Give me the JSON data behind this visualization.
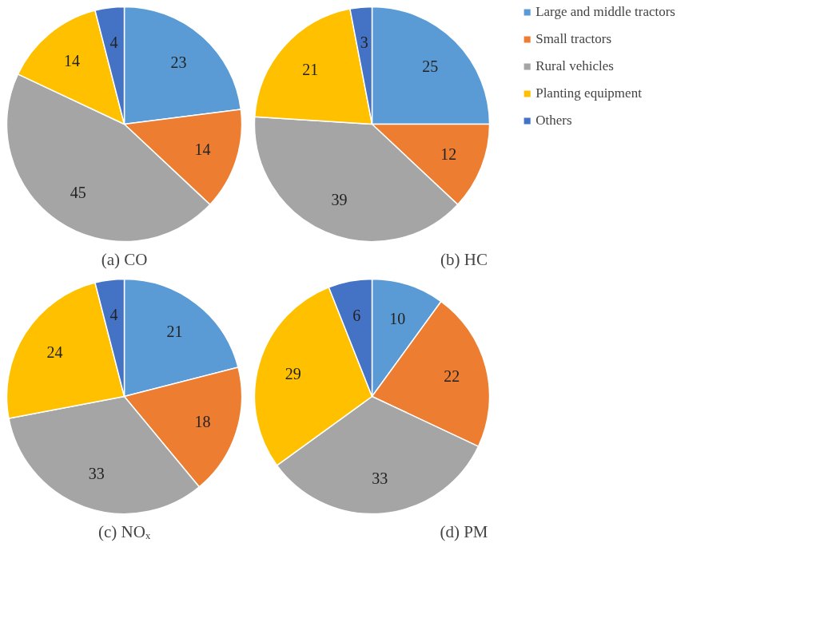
{
  "chart_data": [
    {
      "type": "pie",
      "title": "(a) CO",
      "categories": [
        "Large and middle tractors",
        "Small tractors",
        "Rural vehicles",
        "Planting equipment",
        "Others"
      ],
      "values": [
        23,
        14,
        45,
        14,
        4
      ],
      "colors": [
        "#5b9bd5",
        "#ed7d31",
        "#a5a5a5",
        "#ffc000",
        "#4472c4"
      ],
      "data_labels": true,
      "legend": "right"
    },
    {
      "type": "pie",
      "title": "(b) HC",
      "categories": [
        null,
        null,
        null,
        null,
        null
      ],
      "values": [
        25,
        12,
        39,
        21,
        3
      ],
      "colors": [
        "#5b9bd5",
        "#ed7d31",
        "#a5a5a5",
        "#ffc000",
        "#4472c4"
      ],
      "data_labels": true
    },
    {
      "type": "pie",
      "title": "(c) NOₓ",
      "categories": [
        null,
        null,
        null,
        null,
        null
      ],
      "values": [
        21,
        18,
        33,
        24,
        4
      ],
      "colors": [
        "#5b9bd5",
        "#ed7d31",
        "#a5a5a5",
        "#ffc000",
        "#4472c4"
      ],
      "data_labels": true
    },
    {
      "type": "pie",
      "title": "(d) PM",
      "categories": [
        null,
        null,
        null,
        null,
        null
      ],
      "values": [
        10,
        22,
        33,
        29,
        6
      ],
      "colors": [
        "#5b9bd5",
        "#ed7d31",
        "#a5a5a5",
        "#ffc000",
        "#4472c4"
      ],
      "data_labels": true
    }
  ]
}
